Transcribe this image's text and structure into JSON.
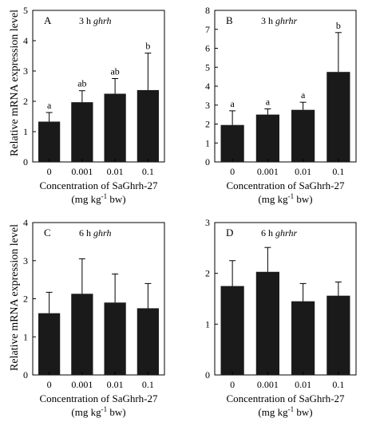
{
  "shared": {
    "ylabel": "Relative mRNA expression level",
    "xlabel_line1": "Concentration of SaGhrh-27",
    "xlabel_line2_pre": "(mg kg",
    "xlabel_line2_sup": "-1",
    "xlabel_line2_post": " bw)"
  },
  "chart_data": [
    {
      "type": "bar",
      "panel": "A",
      "title_prefix": "3 h ",
      "title_gene": "ghrh",
      "categories": [
        "0",
        "0.001",
        "0.01",
        "0.1"
      ],
      "values": [
        1.33,
        1.97,
        2.25,
        2.37
      ],
      "errors": [
        0.3,
        0.38,
        0.5,
        1.22
      ],
      "sig_labels": [
        "a",
        "ab",
        "ab",
        "b"
      ],
      "ylim": [
        0,
        5
      ],
      "yticks": [
        "0",
        "1",
        "2",
        "3",
        "4",
        "5"
      ],
      "bar_color": "#1a1a1a"
    },
    {
      "type": "bar",
      "panel": "B",
      "title_prefix": "3 h ",
      "title_gene": "ghrhr",
      "categories": [
        "0",
        "0.001",
        "0.01",
        "0.1"
      ],
      "values": [
        1.95,
        2.5,
        2.75,
        4.75
      ],
      "errors": [
        0.75,
        0.3,
        0.4,
        2.08
      ],
      "sig_labels": [
        "a",
        "a",
        "a",
        "b"
      ],
      "ylim": [
        0,
        8
      ],
      "yticks": [
        "0",
        "1",
        "2",
        "3",
        "4",
        "5",
        "6",
        "7",
        "8"
      ],
      "bar_color": "#1a1a1a"
    },
    {
      "type": "bar",
      "panel": "C",
      "title_prefix": "6 h ",
      "title_gene": "ghrh",
      "categories": [
        "0",
        "0.001",
        "0.01",
        "0.1"
      ],
      "values": [
        1.62,
        2.13,
        1.9,
        1.75
      ],
      "errors": [
        0.55,
        0.92,
        0.75,
        0.65
      ],
      "sig_labels": [],
      "ylim": [
        0,
        4
      ],
      "yticks": [
        "0",
        "1",
        "2",
        "3",
        "4"
      ],
      "bar_color": "#1a1a1a"
    },
    {
      "type": "bar",
      "panel": "D",
      "title_prefix": "6 h ",
      "title_gene": "ghrhr",
      "categories": [
        "0",
        "0.001",
        "0.01",
        "0.1"
      ],
      "values": [
        1.75,
        2.03,
        1.45,
        1.56
      ],
      "errors": [
        0.5,
        0.48,
        0.35,
        0.27
      ],
      "sig_labels": [],
      "ylim": [
        0,
        3
      ],
      "yticks": [
        "0",
        "1",
        "2",
        "3"
      ],
      "bar_color": "#1a1a1a"
    }
  ]
}
